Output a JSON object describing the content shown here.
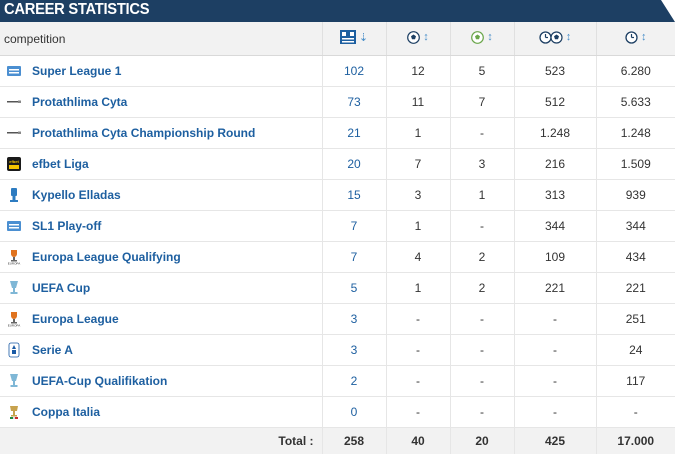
{
  "title": "CAREER STATISTICS",
  "header": {
    "competition": "competition",
    "apps_icon": "appearances-icon",
    "goals_icon": "goals-icon",
    "assists_icon": "assists-icon",
    "mpg_icon": "minutes-per-goal-icon",
    "minutes_icon": "minutes-played-icon"
  },
  "rows": [
    {
      "competition": "Super League 1",
      "logo": "super-league-logo",
      "apps": "102",
      "goals": "12",
      "assists": "5",
      "mpg": "523",
      "minutes": "6.280"
    },
    {
      "competition": "Protathlima Cyta",
      "logo": "cyta-logo",
      "apps": "73",
      "goals": "11",
      "assists": "7",
      "mpg": "512",
      "minutes": "5.633"
    },
    {
      "competition": "Protathlima Cyta Championship Round",
      "logo": "cyta-logo",
      "apps": "21",
      "goals": "1",
      "assists": "-",
      "mpg": "1.248",
      "minutes": "1.248"
    },
    {
      "competition": "efbet Liga",
      "logo": "efbet-liga-logo",
      "apps": "20",
      "goals": "7",
      "assists": "3",
      "mpg": "216",
      "minutes": "1.509"
    },
    {
      "competition": "Kypello Elladas",
      "logo": "greek-cup-logo",
      "apps": "15",
      "goals": "3",
      "assists": "1",
      "mpg": "313",
      "minutes": "939"
    },
    {
      "competition": "SL1 Play-off",
      "logo": "super-league-logo",
      "apps": "7",
      "goals": "1",
      "assists": "-",
      "mpg": "344",
      "minutes": "344"
    },
    {
      "competition": "Europa League Qualifying",
      "logo": "europa-league-logo",
      "apps": "7",
      "goals": "4",
      "assists": "2",
      "mpg": "109",
      "minutes": "434"
    },
    {
      "competition": "UEFA Cup",
      "logo": "uefa-cup-logo",
      "apps": "5",
      "goals": "1",
      "assists": "2",
      "mpg": "221",
      "minutes": "221"
    },
    {
      "competition": "Europa League",
      "logo": "europa-league-logo",
      "apps": "3",
      "goals": "-",
      "assists": "-",
      "mpg": "-",
      "minutes": "251"
    },
    {
      "competition": "Serie A",
      "logo": "serie-a-logo",
      "apps": "3",
      "goals": "-",
      "assists": "-",
      "mpg": "-",
      "minutes": "24"
    },
    {
      "competition": "UEFA-Cup Qualifikation",
      "logo": "uefa-cup-logo",
      "apps": "2",
      "goals": "-",
      "assists": "-",
      "mpg": "-",
      "minutes": "117"
    },
    {
      "competition": "Coppa Italia",
      "logo": "coppa-italia-logo",
      "apps": "0",
      "goals": "-",
      "assists": "-",
      "mpg": "-",
      "minutes": "-"
    }
  ],
  "totals": {
    "label": "Total :",
    "apps": "258",
    "goals": "40",
    "assists": "20",
    "mpg": "425",
    "minutes": "17.000"
  },
  "colors": {
    "header_bg": "#1d3f63",
    "link": "#1d5fa0",
    "arrow": "#4a8fc9"
  }
}
